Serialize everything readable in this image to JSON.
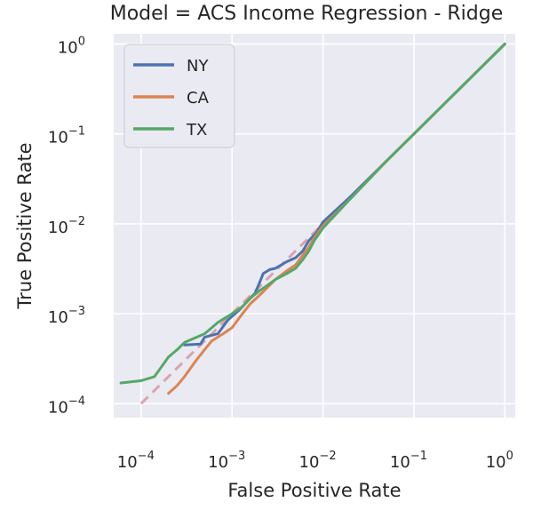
{
  "chart_data": {
    "type": "line",
    "title": "Model = ACS Income Regression - Ridge",
    "xlabel": "False Positive Rate",
    "ylabel": "True Positive Rate",
    "xscale": "log",
    "yscale": "log",
    "xlim": [
      5e-05,
      1.3
    ],
    "ylim": [
      7e-05,
      1.3
    ],
    "grid": true,
    "legend_position": "top-left",
    "x_ticks": [
      {
        "base": "10",
        "exp": "−4",
        "value": 0.0001
      },
      {
        "base": "10",
        "exp": "−3",
        "value": 0.001
      },
      {
        "base": "10",
        "exp": "−2",
        "value": 0.01
      },
      {
        "base": "10",
        "exp": "−1",
        "value": 0.1
      },
      {
        "base": "10",
        "exp": "0",
        "value": 1
      }
    ],
    "y_ticks": [
      {
        "base": "10",
        "exp": "−4",
        "value": 0.0001
      },
      {
        "base": "10",
        "exp": "−3",
        "value": 0.001
      },
      {
        "base": "10",
        "exp": "−2",
        "value": 0.01
      },
      {
        "base": "10",
        "exp": "−1",
        "value": 0.1
      },
      {
        "base": "10",
        "exp": "0",
        "value": 1
      }
    ],
    "reference_line": {
      "x": [
        0.0001,
        1
      ],
      "y": [
        0.0001,
        1
      ],
      "color": "#d9a3ad",
      "dash": true
    },
    "series": [
      {
        "name": "NY",
        "color": "#4c72b0",
        "points": [
          [
            0.0003,
            0.00045
          ],
          [
            0.00045,
            0.00046
          ],
          [
            0.0005,
            0.00055
          ],
          [
            0.0007,
            0.0006
          ],
          [
            0.0009,
            0.00085
          ],
          [
            0.0012,
            0.0011
          ],
          [
            0.0015,
            0.0014
          ],
          [
            0.0018,
            0.0017
          ],
          [
            0.002,
            0.0022
          ],
          [
            0.0022,
            0.0028
          ],
          [
            0.0026,
            0.0031
          ],
          [
            0.003,
            0.0032
          ],
          [
            0.0035,
            0.0035
          ],
          [
            0.004,
            0.0038
          ],
          [
            0.005,
            0.0042
          ],
          [
            0.006,
            0.005
          ],
          [
            0.007,
            0.0065
          ],
          [
            0.0085,
            0.008
          ],
          [
            0.01,
            0.0105
          ],
          [
            0.02,
            0.02
          ],
          [
            0.05,
            0.05
          ],
          [
            0.1,
            0.1
          ],
          [
            0.3,
            0.3
          ],
          [
            1,
            1
          ]
        ]
      },
      {
        "name": "CA",
        "color": "#dd8452",
        "points": [
          [
            0.0002,
            0.00013
          ],
          [
            0.00025,
            0.00016
          ],
          [
            0.0003,
            0.0002
          ],
          [
            0.0004,
            0.0003
          ],
          [
            0.0005,
            0.0004
          ],
          [
            0.0006,
            0.0005
          ],
          [
            0.0008,
            0.0006
          ],
          [
            0.001,
            0.0007
          ],
          [
            0.0013,
            0.001
          ],
          [
            0.0016,
            0.0013
          ],
          [
            0.002,
            0.0016
          ],
          [
            0.0025,
            0.002
          ],
          [
            0.003,
            0.0024
          ],
          [
            0.004,
            0.003
          ],
          [
            0.005,
            0.0035
          ],
          [
            0.006,
            0.0045
          ],
          [
            0.007,
            0.0055
          ],
          [
            0.008,
            0.007
          ],
          [
            0.01,
            0.0095
          ],
          [
            0.02,
            0.019
          ],
          [
            0.05,
            0.05
          ],
          [
            0.1,
            0.1
          ],
          [
            0.3,
            0.3
          ],
          [
            1,
            1
          ]
        ]
      },
      {
        "name": "TX",
        "color": "#55a868",
        "points": [
          [
            6e-05,
            0.00017
          ],
          [
            0.0001,
            0.00018
          ],
          [
            0.00014,
            0.0002
          ],
          [
            0.00016,
            0.00024
          ],
          [
            0.0002,
            0.00033
          ],
          [
            0.00025,
            0.0004
          ],
          [
            0.0003,
            0.00048
          ],
          [
            0.0005,
            0.0006
          ],
          [
            0.0007,
            0.0008
          ],
          [
            0.001,
            0.001
          ],
          [
            0.0013,
            0.0012
          ],
          [
            0.0016,
            0.0015
          ],
          [
            0.002,
            0.0018
          ],
          [
            0.0025,
            0.0021
          ],
          [
            0.003,
            0.0024
          ],
          [
            0.004,
            0.0028
          ],
          [
            0.005,
            0.0032
          ],
          [
            0.006,
            0.004
          ],
          [
            0.007,
            0.005
          ],
          [
            0.008,
            0.0065
          ],
          [
            0.01,
            0.009
          ],
          [
            0.02,
            0.019
          ],
          [
            0.05,
            0.05
          ],
          [
            0.1,
            0.1
          ],
          [
            0.3,
            0.3
          ],
          [
            1,
            1
          ]
        ]
      }
    ]
  }
}
